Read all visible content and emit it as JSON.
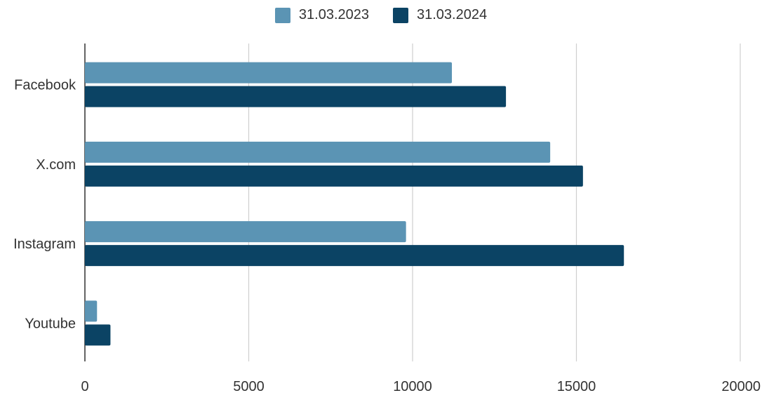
{
  "chart_data": {
    "type": "bar",
    "orientation": "horizontal",
    "categories": [
      "Facebook",
      "X.com",
      "Instagram",
      "Youtube"
    ],
    "series": [
      {
        "name": "31.03.2023",
        "values": [
          11200,
          14200,
          9800,
          370
        ],
        "color": "#5b94b4"
      },
      {
        "name": "31.03.2024",
        "values": [
          12850,
          15200,
          16450,
          780
        ],
        "color": "#0b4364"
      }
    ],
    "xlim": [
      0,
      20000
    ],
    "xticks": [
      "0",
      "5000",
      "10000",
      "15000",
      "20000"
    ],
    "title": "",
    "xlabel": "",
    "ylabel": "",
    "grid": "vertical",
    "legend_position": "top-center"
  }
}
